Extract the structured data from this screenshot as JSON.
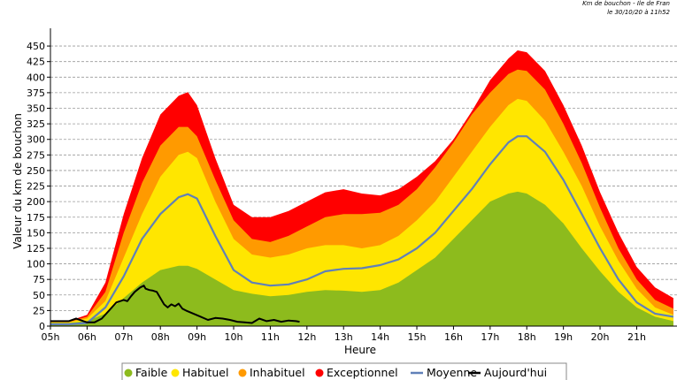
{
  "header": {
    "line1": "Km de bouchon - Ile de Fran",
    "line2": "le 30/10/20 à 11h52"
  },
  "chart_data": {
    "type": "area",
    "title": "Km de bouchon - Ile de France",
    "xlabel": "Heure",
    "ylabel": "Valeur du  km de bouchon",
    "xlim": [
      5,
      22.1
    ],
    "ylim": [
      0,
      470
    ],
    "yticks": [
      0,
      25,
      50,
      75,
      100,
      125,
      150,
      175,
      200,
      225,
      250,
      275,
      300,
      325,
      350,
      375,
      400,
      425,
      450
    ],
    "xticks": [
      "05h",
      "06h",
      "07h",
      "08h",
      "09h",
      "10h",
      "11h",
      "12h",
      "13h",
      "14h",
      "15h",
      "16h",
      "17h",
      "18h",
      "19h",
      "20h",
      "21h"
    ],
    "grid": true,
    "legend_position": "bottom",
    "x": [
      5.0,
      5.5,
      6.0,
      6.5,
      7.0,
      7.5,
      8.0,
      8.5,
      8.75,
      9.0,
      9.5,
      10.0,
      10.5,
      11.0,
      11.5,
      12.0,
      12.5,
      13.0,
      13.5,
      14.0,
      14.5,
      15.0,
      15.5,
      16.0,
      16.5,
      17.0,
      17.5,
      17.75,
      18.0,
      18.5,
      19.0,
      19.5,
      20.0,
      20.5,
      21.0,
      21.5,
      22.0
    ],
    "series": [
      {
        "name": "Faible",
        "color": "#8dbb1d",
        "values": [
          5,
          5,
          8,
          20,
          45,
          70,
          90,
          97,
          97,
          92,
          75,
          58,
          52,
          48,
          50,
          55,
          58,
          57,
          55,
          58,
          70,
          90,
          110,
          140,
          170,
          200,
          213,
          216,
          213,
          195,
          165,
          125,
          88,
          55,
          30,
          15,
          8
        ]
      },
      {
        "name": "Habituel",
        "color": "#ffe600",
        "values": [
          6,
          6,
          12,
          40,
          110,
          180,
          240,
          275,
          280,
          270,
          200,
          140,
          115,
          110,
          115,
          125,
          130,
          130,
          125,
          130,
          145,
          170,
          200,
          240,
          280,
          320,
          355,
          365,
          362,
          330,
          280,
          225,
          160,
          105,
          60,
          30,
          18
        ]
      },
      {
        "name": "Inhabituel",
        "color": "#ff9a00",
        "values": [
          7,
          7,
          15,
          55,
          150,
          230,
          290,
          320,
          320,
          305,
          235,
          170,
          140,
          135,
          145,
          160,
          175,
          180,
          180,
          182,
          195,
          220,
          255,
          295,
          340,
          375,
          405,
          412,
          410,
          380,
          325,
          262,
          190,
          125,
          75,
          42,
          28
        ]
      },
      {
        "name": "Exceptionnel",
        "color": "#ff0000",
        "values": [
          8,
          8,
          18,
          70,
          180,
          270,
          340,
          370,
          376,
          355,
          270,
          195,
          175,
          175,
          185,
          200,
          215,
          220,
          213,
          210,
          220,
          240,
          265,
          300,
          345,
          395,
          430,
          443,
          440,
          410,
          355,
          290,
          215,
          150,
          95,
          62,
          45
        ]
      },
      {
        "name": "Moyenne",
        "color": "#6080b8",
        "values": [
          3,
          3,
          5,
          30,
          80,
          140,
          180,
          207,
          212,
          205,
          145,
          90,
          70,
          65,
          67,
          75,
          88,
          92,
          93,
          98,
          107,
          125,
          150,
          185,
          220,
          260,
          295,
          305,
          305,
          280,
          235,
          180,
          125,
          75,
          38,
          20,
          15
        ]
      },
      {
        "name": "Aujourd'hui",
        "color": "#000000",
        "x": [
          5.0,
          5.5,
          5.7,
          5.9,
          6.0,
          6.2,
          6.4,
          6.6,
          6.8,
          7.0,
          7.1,
          7.2,
          7.3,
          7.45,
          7.55,
          7.6,
          7.7,
          7.8,
          7.9,
          8.0,
          8.1,
          8.2,
          8.3,
          8.4,
          8.5,
          8.6,
          8.7,
          8.9,
          9.1,
          9.3,
          9.5,
          9.7,
          9.9,
          10.1,
          10.3,
          10.5,
          10.7,
          10.9,
          11.1,
          11.3,
          11.5,
          11.7,
          11.8
        ],
        "values": [
          8,
          8,
          12,
          8,
          6,
          6,
          12,
          25,
          38,
          42,
          40,
          48,
          55,
          62,
          65,
          60,
          58,
          57,
          55,
          45,
          35,
          30,
          35,
          32,
          36,
          28,
          25,
          20,
          15,
          10,
          13,
          12,
          10,
          7,
          6,
          5,
          12,
          8,
          10,
          7,
          9,
          8,
          7
        ]
      }
    ]
  }
}
